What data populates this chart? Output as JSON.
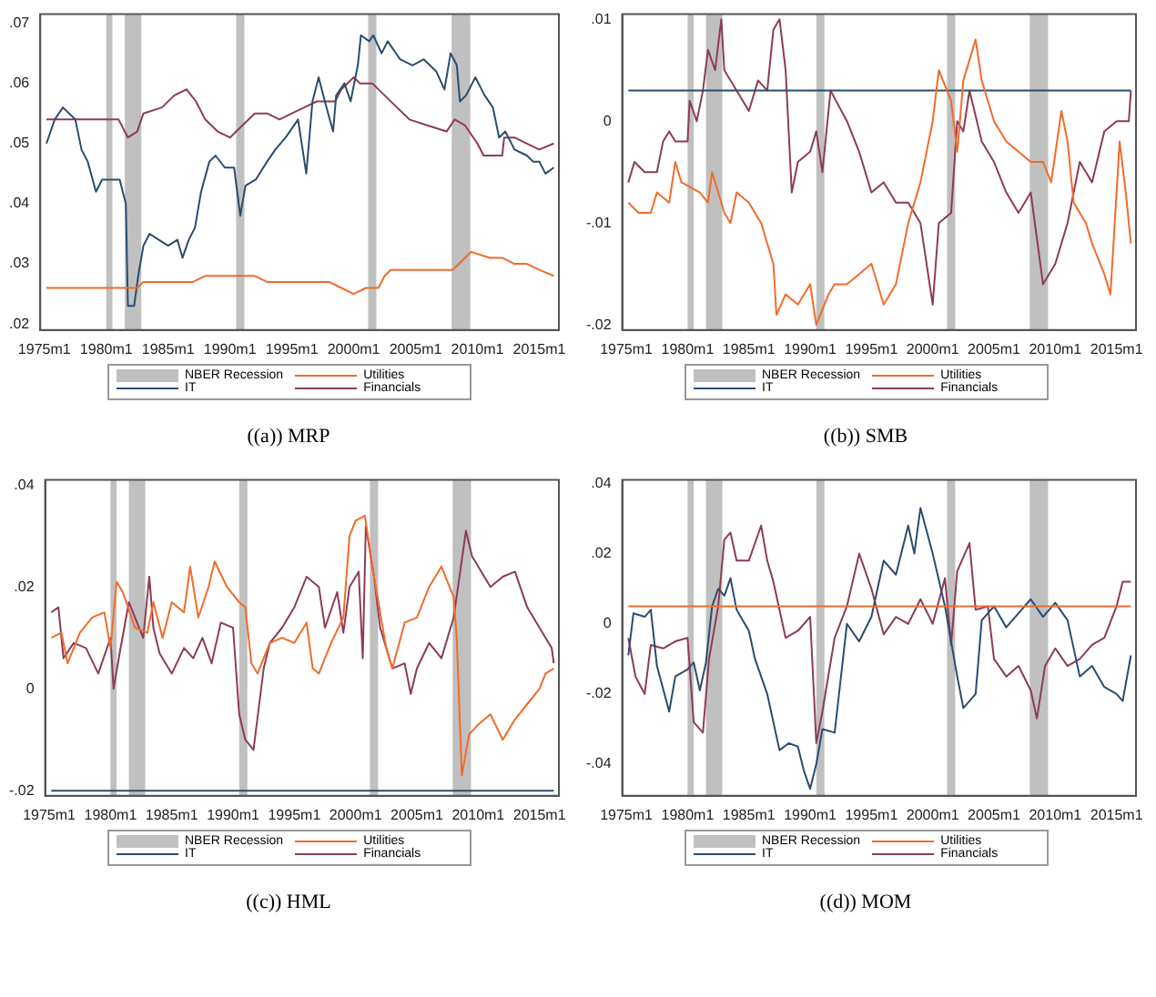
{
  "chart_data": [
    {
      "type": "line",
      "title": "((a)) MRP",
      "legend": "bottom",
      "xlim": [
        "1974-09",
        "2016-08"
      ],
      "ylim": [
        0.019,
        0.0715
      ],
      "xticks": [
        {
          "value": "1975-01",
          "label": "1975m1"
        },
        {
          "value": "1980-01",
          "label": "1980m1"
        },
        {
          "value": "1985-01",
          "label": "1985m1"
        },
        {
          "value": "1990-01",
          "label": "1990m1"
        },
        {
          "value": "1995-01",
          "label": "1995m1"
        },
        {
          "value": "2000-01",
          "label": "2000m1"
        },
        {
          "value": "2005-01",
          "label": "2005m1"
        },
        {
          "value": "2010-01",
          "label": "2010m1"
        },
        {
          "value": "2015-01",
          "label": "2015m1"
        }
      ],
      "yticks": [
        {
          "value": 0.02,
          "label": ".02"
        },
        {
          "value": 0.03,
          "label": ".03"
        },
        {
          "value": 0.04,
          "label": ".04"
        },
        {
          "value": 0.05,
          "label": ".05"
        },
        {
          "value": 0.06,
          "label": ".06"
        },
        {
          "value": 0.07,
          "label": ".07"
        }
      ],
      "bands": [
        {
          "axis": "x",
          "from": "1980-01",
          "to": "1980-07",
          "label": "NBER Recession",
          "color": "#c0c0c0"
        },
        {
          "axis": "x",
          "from": "1981-07",
          "to": "1982-11",
          "color": "#c0c0c0"
        },
        {
          "axis": "x",
          "from": "1990-07",
          "to": "1991-03",
          "color": "#c0c0c0"
        },
        {
          "axis": "x",
          "from": "2001-03",
          "to": "2001-11",
          "color": "#c0c0c0"
        },
        {
          "axis": "x",
          "from": "2007-12",
          "to": "2009-06",
          "color": "#c0c0c0"
        }
      ],
      "series": [
        {
          "name": "Utilities",
          "color": "#f26b2a",
          "x": [
            "1975-03",
            "1982-07",
            "1983-01",
            "1987-01",
            "1988-01",
            "1992-01",
            "1993-01",
            "1998-01",
            "1999-01",
            "2000-01",
            "2001-01",
            "2002-01",
            "2002-07",
            "2003-01",
            "2004-01",
            "2008-01",
            "2009-01",
            "2009-07",
            "2011-01",
            "2012-01",
            "2013-01",
            "2014-01",
            "2015-01",
            "2016-03"
          ],
          "values": [
            0.026,
            0.026,
            0.027,
            0.027,
            0.028,
            0.028,
            0.027,
            0.027,
            0.026,
            0.025,
            0.026,
            0.026,
            0.028,
            0.029,
            0.029,
            0.029,
            0.031,
            0.032,
            0.031,
            0.031,
            0.03,
            0.03,
            0.029,
            0.028
          ]
        },
        {
          "name": "IT",
          "color": "#2b4c6f",
          "x": [
            "1975-03",
            "1975-11",
            "1976-07",
            "1977-07",
            "1978-01",
            "1978-07",
            "1979-03",
            "1979-09",
            "1980-05",
            "1981-02",
            "1981-08",
            "1981-10",
            "1982-04",
            "1982-08",
            "1983-01",
            "1983-07",
            "1984-04",
            "1985-01",
            "1985-10",
            "1986-03",
            "1986-09",
            "1987-03",
            "1987-09",
            "1988-05",
            "1988-11",
            "1989-08",
            "1990-05",
            "1990-11",
            "1991-04",
            "1992-02",
            "1993-01",
            "1993-09",
            "1994-07",
            "1995-07",
            "1996-03",
            "1996-09",
            "1997-03",
            "1997-09",
            "1998-05",
            "1998-08",
            "1999-04",
            "1999-10",
            "2000-05",
            "2000-08",
            "2001-04",
            "2001-08",
            "2002-04",
            "2002-10",
            "2003-10",
            "2004-10",
            "2005-09",
            "2006-09",
            "2007-05",
            "2007-11",
            "2008-05",
            "2008-08",
            "2009-02",
            "2009-11",
            "2010-08",
            "2011-04",
            "2011-10",
            "2012-04",
            "2013-01",
            "2014-01",
            "2014-07",
            "2015-01",
            "2015-07",
            "2016-03"
          ],
          "values": [
            0.05,
            0.054,
            0.056,
            0.054,
            0.049,
            0.047,
            0.042,
            0.044,
            0.044,
            0.044,
            0.04,
            0.023,
            0.023,
            0.028,
            0.033,
            0.035,
            0.034,
            0.033,
            0.034,
            0.031,
            0.034,
            0.036,
            0.042,
            0.047,
            0.048,
            0.046,
            0.046,
            0.038,
            0.043,
            0.044,
            0.047,
            0.049,
            0.051,
            0.054,
            0.045,
            0.057,
            0.061,
            0.057,
            0.052,
            0.058,
            0.06,
            0.057,
            0.063,
            0.068,
            0.067,
            0.068,
            0.065,
            0.067,
            0.064,
            0.063,
            0.064,
            0.062,
            0.059,
            0.065,
            0.063,
            0.057,
            0.058,
            0.061,
            0.058,
            0.056,
            0.051,
            0.052,
            0.049,
            0.048,
            0.047,
            0.047,
            0.045,
            0.046
          ]
        },
        {
          "name": "Financials",
          "color": "#8e3b55",
          "x": [
            "1975-03",
            "1978-01",
            "1981-01",
            "1981-10",
            "1982-07",
            "1983-01",
            "1984-07",
            "1985-07",
            "1986-07",
            "1987-04",
            "1988-01",
            "1989-01",
            "1990-01",
            "1991-01",
            "1992-01",
            "1993-01",
            "1994-01",
            "1995-01",
            "1996-01",
            "1997-01",
            "1998-07",
            "1999-01",
            "2000-01",
            "2000-07",
            "2001-07",
            "2002-07",
            "2003-07",
            "2004-07",
            "2006-01",
            "2007-07",
            "2008-03",
            "2009-01",
            "2010-01",
            "2010-07",
            "2012-01",
            "2012-03",
            "2013-01",
            "2014-01",
            "2015-01",
            "2016-03"
          ],
          "values": [
            0.054,
            0.054,
            0.054,
            0.051,
            0.052,
            0.055,
            0.056,
            0.058,
            0.059,
            0.057,
            0.054,
            0.052,
            0.051,
            0.053,
            0.055,
            0.055,
            0.054,
            0.055,
            0.056,
            0.057,
            0.057,
            0.059,
            0.061,
            0.06,
            0.06,
            0.058,
            0.056,
            0.054,
            0.053,
            0.052,
            0.054,
            0.053,
            0.05,
            0.048,
            0.048,
            0.051,
            0.051,
            0.05,
            0.049,
            0.05
          ]
        }
      ]
    },
    {
      "type": "line",
      "title": "((b)) SMB",
      "legend": "bottom",
      "xlim": [
        "1974-09",
        "2016-08"
      ],
      "ylim": [
        -0.0205,
        0.0105
      ],
      "xticks": [
        {
          "value": "1975-01",
          "label": "1975m1"
        },
        {
          "value": "1980-01",
          "label": "1980m1"
        },
        {
          "value": "1985-01",
          "label": "1985m1"
        },
        {
          "value": "1990-01",
          "label": "1990m1"
        },
        {
          "value": "1995-01",
          "label": "1995m1"
        },
        {
          "value": "2000-01",
          "label": "2000m1"
        },
        {
          "value": "2005-01",
          "label": "2005m1"
        },
        {
          "value": "2010-01",
          "label": "2010m1"
        },
        {
          "value": "2015-01",
          "label": "2015m1"
        }
      ],
      "yticks": [
        {
          "value": -0.02,
          "label": "-.02"
        },
        {
          "value": -0.01,
          "label": "-.01"
        },
        {
          "value": 0,
          "label": "0"
        },
        {
          "value": 0.01,
          "label": ".01"
        }
      ],
      "bands": [
        {
          "axis": "x",
          "from": "1980-01",
          "to": "1980-07",
          "label": "NBER Recession",
          "color": "#c0c0c0"
        },
        {
          "axis": "x",
          "from": "1981-07",
          "to": "1982-11",
          "color": "#c0c0c0"
        },
        {
          "axis": "x",
          "from": "1990-07",
          "to": "1991-03",
          "color": "#c0c0c0"
        },
        {
          "axis": "x",
          "from": "2001-03",
          "to": "2001-11",
          "color": "#c0c0c0"
        },
        {
          "axis": "x",
          "from": "2007-12",
          "to": "2009-06",
          "color": "#c0c0c0"
        }
      ],
      "series": [
        {
          "name": "Utilities",
          "color": "#f26b2a",
          "x": [
            "1975-03",
            "1976-01",
            "1977-01",
            "1977-07",
            "1978-07",
            "1979-01",
            "1979-07",
            "1981-01",
            "1981-09",
            "1982-01",
            "1983-01",
            "1983-07",
            "1984-01",
            "1985-01",
            "1986-01",
            "1987-01",
            "1987-04",
            "1988-01",
            "1989-01",
            "1990-01",
            "1990-07",
            "1991-07",
            "1992-01",
            "1993-01",
            "1994-01",
            "1995-01",
            "1996-01",
            "1997-01",
            "1998-01",
            "1999-01",
            "2000-01",
            "2000-07",
            "2001-07",
            "2002-01",
            "2002-07",
            "2003-07",
            "2004-01",
            "2005-01",
            "2006-01",
            "2007-01",
            "2008-01",
            "2009-01",
            "2009-09",
            "2010-07",
            "2011-01",
            "2011-07",
            "2012-07",
            "2013-01",
            "2014-01",
            "2014-07",
            "2015-01",
            "2015-04",
            "2015-10",
            "2016-03"
          ],
          "values": [
            -0.008,
            -0.009,
            -0.009,
            -0.007,
            -0.008,
            -0.004,
            -0.006,
            -0.007,
            -0.008,
            -0.005,
            -0.009,
            -0.01,
            -0.007,
            -0.008,
            -0.01,
            -0.014,
            -0.019,
            -0.017,
            -0.018,
            -0.016,
            -0.02,
            -0.017,
            -0.016,
            -0.016,
            -0.015,
            -0.014,
            -0.018,
            -0.016,
            -0.01,
            -0.006,
            0.0,
            0.005,
            0.002,
            -0.003,
            0.004,
            0.008,
            0.004,
            0.0,
            -0.002,
            -0.003,
            -0.004,
            -0.004,
            -0.006,
            0.001,
            -0.002,
            -0.008,
            -0.01,
            -0.012,
            -0.015,
            -0.017,
            -0.007,
            -0.002,
            -0.007,
            -0.012
          ]
        },
        {
          "name": "IT",
          "color": "#2b4c6f",
          "x": [
            "1975-03",
            "2016-03"
          ],
          "values": [
            0.003,
            0.003
          ]
        },
        {
          "name": "Financials",
          "color": "#8e3b55",
          "x": [
            "1975-03",
            "1975-09",
            "1976-07",
            "1977-07",
            "1978-01",
            "1978-07",
            "1979-01",
            "1980-01",
            "1980-03",
            "1980-10",
            "1981-04",
            "1981-09",
            "1982-04",
            "1982-10",
            "1983-01",
            "1984-01",
            "1985-01",
            "1985-10",
            "1986-07",
            "1987-01",
            "1987-07",
            "1988-01",
            "1988-07",
            "1989-01",
            "1990-01",
            "1990-07",
            "1991-01",
            "1991-09",
            "1993-01",
            "1994-01",
            "1995-01",
            "1996-01",
            "1997-01",
            "1998-01",
            "1999-01",
            "2000-01",
            "2000-07",
            "2001-07",
            "2002-01",
            "2002-07",
            "2003-01",
            "2004-01",
            "2005-01",
            "2006-01",
            "2007-01",
            "2008-01",
            "2009-01",
            "2010-01",
            "2011-01",
            "2012-01",
            "2013-01",
            "2014-01",
            "2015-01",
            "2016-01",
            "2016-03"
          ],
          "values": [
            -0.006,
            -0.004,
            -0.005,
            -0.005,
            -0.002,
            -0.001,
            -0.002,
            -0.002,
            0.002,
            0.0,
            0.003,
            0.007,
            0.005,
            0.01,
            0.005,
            0.003,
            0.001,
            0.004,
            0.003,
            0.009,
            0.01,
            0.005,
            -0.007,
            -0.004,
            -0.003,
            -0.001,
            -0.005,
            0.003,
            0.0,
            -0.003,
            -0.007,
            -0.006,
            -0.008,
            -0.008,
            -0.01,
            -0.018,
            -0.01,
            -0.009,
            0.0,
            -0.001,
            0.003,
            -0.002,
            -0.004,
            -0.007,
            -0.009,
            -0.007,
            -0.016,
            -0.014,
            -0.01,
            -0.004,
            -0.006,
            -0.001,
            0.0,
            0.0,
            0.003
          ]
        }
      ]
    },
    {
      "type": "line",
      "title": "((c)) HML",
      "legend": "bottom",
      "xlim": [
        "1974-09",
        "2016-08"
      ],
      "ylim": [
        -0.021,
        0.041
      ],
      "xticks": [
        {
          "value": "1975-01",
          "label": "1975m1"
        },
        {
          "value": "1980-01",
          "label": "1980m1"
        },
        {
          "value": "1985-01",
          "label": "1985m1"
        },
        {
          "value": "1990-01",
          "label": "1990m1"
        },
        {
          "value": "1995-01",
          "label": "1995m1"
        },
        {
          "value": "2000-01",
          "label": "2000m1"
        },
        {
          "value": "2005-01",
          "label": "2005m1"
        },
        {
          "value": "2010-01",
          "label": "2010m1"
        },
        {
          "value": "2015-01",
          "label": "2015m1"
        }
      ],
      "yticks": [
        {
          "value": -0.02,
          "label": "-.02"
        },
        {
          "value": 0,
          "label": "0"
        },
        {
          "value": 0.02,
          "label": ".02"
        },
        {
          "value": 0.04,
          "label": ".04"
        }
      ],
      "bands": [
        {
          "axis": "x",
          "from": "1980-01",
          "to": "1980-07",
          "label": "NBER Recession",
          "color": "#c0c0c0"
        },
        {
          "axis": "x",
          "from": "1981-07",
          "to": "1982-11",
          "color": "#c0c0c0"
        },
        {
          "axis": "x",
          "from": "1990-07",
          "to": "1991-03",
          "color": "#c0c0c0"
        },
        {
          "axis": "x",
          "from": "2001-03",
          "to": "2001-11",
          "color": "#c0c0c0"
        },
        {
          "axis": "x",
          "from": "2007-12",
          "to": "2009-06",
          "color": "#c0c0c0"
        }
      ],
      "series": [
        {
          "name": "Utilities",
          "color": "#f26b2a",
          "x": [
            "1975-03",
            "1976-01",
            "1976-07",
            "1977-07",
            "1978-07",
            "1979-07",
            "1980-01",
            "1980-07",
            "1981-01",
            "1982-01",
            "1983-01",
            "1983-07",
            "1984-04",
            "1985-01",
            "1986-01",
            "1986-07",
            "1987-03",
            "1988-01",
            "1988-07",
            "1989-07",
            "1990-07",
            "1991-01",
            "1991-07",
            "1992-01",
            "1993-01",
            "1994-01",
            "1995-01",
            "1996-01",
            "1996-07",
            "1997-01",
            "1998-01",
            "1999-01",
            "1999-07",
            "2000-01",
            "2000-10",
            "2001-07",
            "2002-07",
            "2003-01",
            "2004-01",
            "2005-01",
            "2006-01",
            "2007-01",
            "2008-01",
            "2008-04",
            "2008-09",
            "2009-04",
            "2010-01",
            "2011-01",
            "2012-01",
            "2013-01",
            "2014-01",
            "2015-01",
            "2015-07",
            "2016-03"
          ],
          "values": [
            0.01,
            0.011,
            0.005,
            0.011,
            0.014,
            0.015,
            0.008,
            0.021,
            0.019,
            0.012,
            0.011,
            0.017,
            0.01,
            0.017,
            0.015,
            0.024,
            0.014,
            0.02,
            0.025,
            0.02,
            0.017,
            0.016,
            0.005,
            0.003,
            0.009,
            0.01,
            0.009,
            0.013,
            0.004,
            0.003,
            0.009,
            0.014,
            0.03,
            0.033,
            0.034,
            0.022,
            0.008,
            0.004,
            0.013,
            0.014,
            0.02,
            0.024,
            0.018,
            0.01,
            -0.017,
            -0.009,
            -0.007,
            -0.005,
            -0.01,
            -0.006,
            -0.003,
            0.0,
            0.003,
            0.004
          ]
        },
        {
          "name": "IT",
          "color": "#2b4c6f",
          "x": [
            "1975-03",
            "2016-03"
          ],
          "values": [
            -0.02,
            -0.02
          ]
        },
        {
          "name": "Financials",
          "color": "#8e3b55",
          "x": [
            "1975-03",
            "1975-10",
            "1976-03",
            "1977-01",
            "1978-01",
            "1979-01",
            "1980-01",
            "1980-04",
            "1980-10",
            "1981-07",
            "1982-01",
            "1982-09",
            "1983-03",
            "1983-07",
            "1984-01",
            "1985-01",
            "1986-01",
            "1986-10",
            "1987-07",
            "1988-04",
            "1989-01",
            "1990-01",
            "1990-07",
            "1991-01",
            "1991-09",
            "1992-07",
            "1993-01",
            "1994-01",
            "1995-01",
            "1996-01",
            "1997-01",
            "1997-07",
            "1998-07",
            "1999-01",
            "1999-07",
            "2000-04",
            "2000-08",
            "2000-11",
            "2001-07",
            "2002-01",
            "2003-01",
            "2004-01",
            "2004-07",
            "2005-01",
            "2006-01",
            "2007-01",
            "2008-01",
            "2009-01",
            "2009-07",
            "2010-01",
            "2011-01",
            "2012-01",
            "2013-01",
            "2014-01",
            "2015-01",
            "2016-01",
            "2016-03"
          ],
          "values": [
            0.015,
            0.016,
            0.006,
            0.009,
            0.008,
            0.003,
            0.01,
            0.0,
            0.007,
            0.017,
            0.014,
            0.01,
            0.022,
            0.012,
            0.007,
            0.003,
            0.008,
            0.006,
            0.01,
            0.005,
            0.013,
            0.012,
            -0.005,
            -0.01,
            -0.012,
            0.004,
            0.009,
            0.012,
            0.016,
            0.022,
            0.02,
            0.012,
            0.019,
            0.011,
            0.02,
            0.023,
            0.006,
            0.032,
            0.022,
            0.012,
            0.004,
            0.005,
            -0.001,
            0.004,
            0.009,
            0.006,
            0.014,
            0.031,
            0.026,
            0.024,
            0.02,
            0.022,
            0.023,
            0.016,
            0.012,
            0.008,
            0.005
          ]
        }
      ]
    },
    {
      "type": "line",
      "title": "((d)) MOM",
      "legend": "bottom",
      "xlim": [
        "1974-09",
        "2016-08"
      ],
      "ylim": [
        -0.049,
        0.041
      ],
      "xticks": [
        {
          "value": "1975-01",
          "label": "1975m1"
        },
        {
          "value": "1980-01",
          "label": "1980m1"
        },
        {
          "value": "1985-01",
          "label": "1985m1"
        },
        {
          "value": "1990-01",
          "label": "1990m1"
        },
        {
          "value": "1995-01",
          "label": "1995m1"
        },
        {
          "value": "2000-01",
          "label": "2000m1"
        },
        {
          "value": "2005-01",
          "label": "2005m1"
        },
        {
          "value": "2010-01",
          "label": "2010m1"
        },
        {
          "value": "2015-01",
          "label": "2015m1"
        }
      ],
      "yticks": [
        {
          "value": -0.04,
          "label": "-.04"
        },
        {
          "value": -0.02,
          "label": "-.02"
        },
        {
          "value": 0,
          "label": "0"
        },
        {
          "value": 0.02,
          "label": ".02"
        },
        {
          "value": 0.04,
          "label": ".04"
        }
      ],
      "bands": [
        {
          "axis": "x",
          "from": "1980-01",
          "to": "1980-07",
          "label": "NBER Recession",
          "color": "#c0c0c0"
        },
        {
          "axis": "x",
          "from": "1981-07",
          "to": "1982-11",
          "color": "#c0c0c0"
        },
        {
          "axis": "x",
          "from": "1990-07",
          "to": "1991-03",
          "color": "#c0c0c0"
        },
        {
          "axis": "x",
          "from": "2001-03",
          "to": "2001-11",
          "color": "#c0c0c0"
        },
        {
          "axis": "x",
          "from": "2007-12",
          "to": "2009-06",
          "color": "#c0c0c0"
        }
      ],
      "series": [
        {
          "name": "Utilities",
          "color": "#f26b2a",
          "x": [
            "1975-03",
            "2016-03"
          ],
          "values": [
            0.005,
            0.005
          ]
        },
        {
          "name": "IT",
          "color": "#2b4c6f",
          "x": [
            "1975-03",
            "1975-08",
            "1976-07",
            "1977-01",
            "1977-07",
            "1978-07",
            "1979-01",
            "1980-01",
            "1980-07",
            "1981-01",
            "1981-07",
            "1982-01",
            "1982-07",
            "1983-01",
            "1983-07",
            "1984-01",
            "1985-01",
            "1985-07",
            "1986-07",
            "1987-07",
            "1988-04",
            "1989-01",
            "1989-07",
            "1990-01",
            "1990-07",
            "1991-01",
            "1992-01",
            "1993-01",
            "1994-01",
            "1995-01",
            "1996-01",
            "1997-01",
            "1998-01",
            "1998-07",
            "1999-01",
            "2000-01",
            "2001-01",
            "2002-01",
            "2002-07",
            "2003-07",
            "2004-01",
            "2005-01",
            "2006-01",
            "2007-01",
            "2008-01",
            "2009-01",
            "2010-01",
            "2011-01",
            "2012-01",
            "2013-01",
            "2014-01",
            "2015-01",
            "2015-07",
            "2016-03"
          ],
          "values": [
            -0.009,
            0.003,
            0.002,
            0.004,
            -0.012,
            -0.025,
            -0.015,
            -0.013,
            -0.011,
            -0.019,
            -0.011,
            0.005,
            0.01,
            0.008,
            0.013,
            0.004,
            -0.002,
            -0.01,
            -0.02,
            -0.036,
            -0.034,
            -0.035,
            -0.042,
            -0.047,
            -0.04,
            -0.03,
            -0.031,
            0.0,
            -0.005,
            0.002,
            0.018,
            0.014,
            0.028,
            0.02,
            0.033,
            0.02,
            0.005,
            -0.015,
            -0.024,
            -0.02,
            0.001,
            0.005,
            -0.001,
            0.003,
            0.007,
            0.002,
            0.006,
            0.001,
            -0.015,
            -0.012,
            -0.018,
            -0.02,
            -0.022,
            -0.009
          ]
        },
        {
          "name": "Financials",
          "color": "#8e3b55",
          "x": [
            "1975-03",
            "1975-10",
            "1976-07",
            "1977-01",
            "1978-01",
            "1979-01",
            "1980-01",
            "1980-07",
            "1981-04",
            "1981-10",
            "1982-07",
            "1983-01",
            "1983-07",
            "1984-01",
            "1985-01",
            "1986-01",
            "1986-07",
            "1987-01",
            "1988-01",
            "1989-01",
            "1990-01",
            "1990-07",
            "1991-01",
            "1992-01",
            "1993-01",
            "1994-01",
            "1995-01",
            "1996-01",
            "1997-01",
            "1998-01",
            "1999-01",
            "2000-01",
            "2001-01",
            "2001-07",
            "2002-01",
            "2003-01",
            "2003-07",
            "2004-07",
            "2005-01",
            "2006-01",
            "2007-01",
            "2008-01",
            "2008-07",
            "2009-03",
            "2010-01",
            "2011-01",
            "2012-01",
            "2013-01",
            "2014-01",
            "2015-01",
            "2015-07",
            "2016-03"
          ],
          "values": [
            -0.004,
            -0.015,
            -0.02,
            -0.006,
            -0.007,
            -0.005,
            -0.004,
            -0.028,
            -0.031,
            -0.01,
            0.005,
            0.024,
            0.026,
            0.018,
            0.018,
            0.028,
            0.018,
            0.012,
            -0.004,
            -0.002,
            0.002,
            -0.034,
            -0.025,
            -0.004,
            0.005,
            0.02,
            0.01,
            -0.003,
            0.002,
            0.0,
            0.007,
            0.0,
            0.013,
            -0.006,
            0.015,
            0.023,
            0.004,
            0.005,
            -0.01,
            -0.015,
            -0.012,
            -0.019,
            -0.027,
            -0.012,
            -0.007,
            -0.012,
            -0.01,
            -0.006,
            -0.004,
            0.005,
            0.012,
            0.012
          ]
        }
      ]
    }
  ]
}
